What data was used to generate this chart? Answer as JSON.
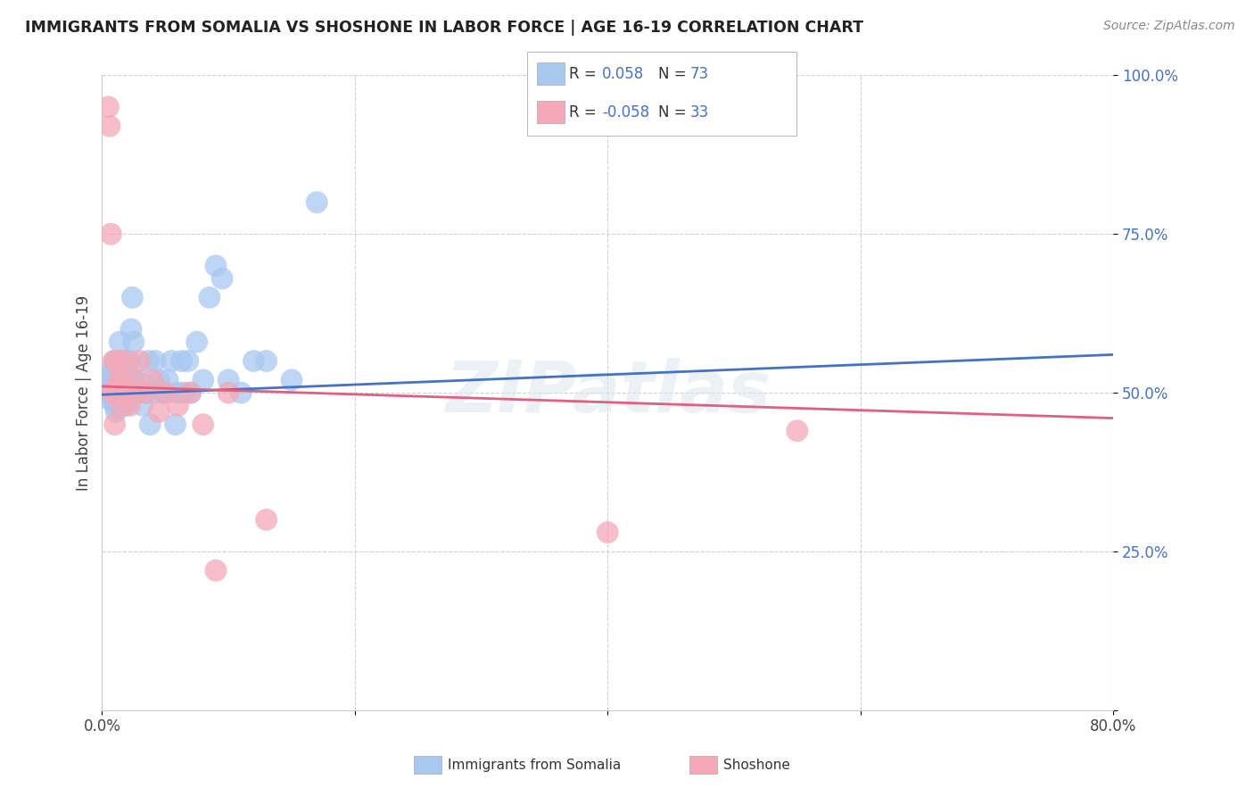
{
  "title": "IMMIGRANTS FROM SOMALIA VS SHOSHONE IN LABOR FORCE | AGE 16-19 CORRELATION CHART",
  "source": "Source: ZipAtlas.com",
  "ylabel": "In Labor Force | Age 16-19",
  "xlim": [
    0.0,
    0.8
  ],
  "ylim": [
    0.0,
    1.0
  ],
  "somalia_R": 0.058,
  "somalia_N": 73,
  "shoshone_R": -0.058,
  "shoshone_N": 33,
  "somalia_color": "#a8c8f0",
  "shoshone_color": "#f4a8b8",
  "somalia_line_color": "#4472c4",
  "shoshone_line_color": "#e06080",
  "background_color": "#ffffff",
  "ytick_color": "#4472c4",
  "somalia_x": [
    0.005,
    0.005,
    0.006,
    0.007,
    0.008,
    0.008,
    0.009,
    0.009,
    0.009,
    0.01,
    0.01,
    0.01,
    0.01,
    0.011,
    0.011,
    0.011,
    0.012,
    0.012,
    0.012,
    0.013,
    0.013,
    0.013,
    0.014,
    0.014,
    0.014,
    0.015,
    0.015,
    0.016,
    0.016,
    0.017,
    0.018,
    0.018,
    0.019,
    0.019,
    0.02,
    0.02,
    0.021,
    0.022,
    0.023,
    0.024,
    0.025,
    0.026,
    0.027,
    0.028,
    0.03,
    0.032,
    0.035,
    0.037,
    0.038,
    0.04,
    0.042,
    0.045,
    0.048,
    0.05,
    0.052,
    0.055,
    0.058,
    0.06,
    0.063,
    0.065,
    0.068,
    0.07,
    0.075,
    0.08,
    0.085,
    0.09,
    0.095,
    0.1,
    0.11,
    0.12,
    0.13,
    0.15,
    0.17
  ],
  "somalia_y": [
    0.5,
    0.52,
    0.49,
    0.51,
    0.5,
    0.53,
    0.49,
    0.51,
    0.54,
    0.5,
    0.52,
    0.48,
    0.55,
    0.5,
    0.53,
    0.47,
    0.51,
    0.49,
    0.55,
    0.5,
    0.48,
    0.53,
    0.52,
    0.5,
    0.58,
    0.5,
    0.55,
    0.48,
    0.52,
    0.5,
    0.5,
    0.55,
    0.5,
    0.48,
    0.52,
    0.5,
    0.5,
    0.55,
    0.6,
    0.65,
    0.58,
    0.52,
    0.5,
    0.5,
    0.52,
    0.48,
    0.5,
    0.55,
    0.45,
    0.5,
    0.55,
    0.52,
    0.5,
    0.5,
    0.52,
    0.55,
    0.45,
    0.5,
    0.55,
    0.5,
    0.55,
    0.5,
    0.58,
    0.52,
    0.65,
    0.7,
    0.68,
    0.52,
    0.5,
    0.55,
    0.55,
    0.52,
    0.8
  ],
  "shoshone_x": [
    0.005,
    0.006,
    0.007,
    0.008,
    0.009,
    0.01,
    0.01,
    0.011,
    0.012,
    0.013,
    0.014,
    0.015,
    0.016,
    0.017,
    0.018,
    0.019,
    0.02,
    0.022,
    0.025,
    0.028,
    0.03,
    0.035,
    0.04,
    0.045,
    0.05,
    0.06,
    0.07,
    0.08,
    0.09,
    0.1,
    0.13,
    0.4,
    0.55
  ],
  "shoshone_y": [
    0.95,
    0.92,
    0.75,
    0.5,
    0.55,
    0.5,
    0.45,
    0.5,
    0.55,
    0.52,
    0.5,
    0.48,
    0.52,
    0.5,
    0.5,
    0.55,
    0.5,
    0.48,
    0.52,
    0.5,
    0.55,
    0.5,
    0.52,
    0.47,
    0.5,
    0.48,
    0.5,
    0.45,
    0.22,
    0.5,
    0.3,
    0.28,
    0.44
  ],
  "somalia_line_y0": 0.497,
  "somalia_line_y1": 0.56,
  "shoshone_line_y0": 0.51,
  "shoshone_line_y1": 0.46
}
